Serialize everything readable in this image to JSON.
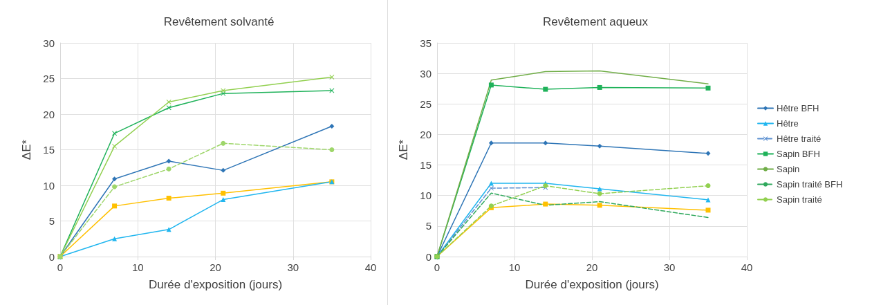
{
  "chart_data": [
    {
      "type": "line",
      "title": "Revêtement solvanté",
      "xlabel": "Durée d'exposition (jours)",
      "ylabel": "ΔE*",
      "xlim": [
        0,
        40
      ],
      "xticks": [
        0,
        10,
        20,
        30,
        40
      ],
      "ylim": [
        0,
        30
      ],
      "yticks": [
        0,
        5,
        10,
        15,
        20,
        25,
        30
      ],
      "grid": true,
      "legend": false,
      "x": [
        0,
        7,
        14,
        21,
        35
      ],
      "series": [
        {
          "color": "#ffc000",
          "marker": "square",
          "values": [
            0,
            7.1,
            8.2,
            8.9,
            10.5
          ]
        },
        {
          "color": "#2e75b6",
          "marker": "diamond",
          "values": [
            0,
            10.9,
            13.4,
            12.1,
            18.3
          ]
        },
        {
          "color": "#21b6ef",
          "marker": "triangle",
          "values": [
            0,
            2.5,
            3.8,
            8.0,
            10.5
          ]
        },
        {
          "color": "#1fb25a",
          "marker": "cross",
          "values": [
            0,
            17.3,
            20.9,
            22.9,
            23.3
          ]
        },
        {
          "color": "#92d050",
          "marker": "cross",
          "values": [
            0,
            15.5,
            21.7,
            23.3,
            25.2
          ]
        },
        {
          "color": "#9ed66a",
          "marker": "circle",
          "line_style": "dashed",
          "values": [
            0,
            9.8,
            12.3,
            15.9,
            15.0
          ]
        }
      ]
    },
    {
      "type": "line",
      "title": "Revêtement aqueux",
      "xlabel": "Durée d'exposition (jours)",
      "ylabel": "ΔE*",
      "xlim": [
        0,
        40
      ],
      "xticks": [
        0,
        10,
        20,
        30,
        40
      ],
      "ylim": [
        0,
        35
      ],
      "yticks": [
        0,
        5,
        10,
        15,
        20,
        25,
        30,
        35
      ],
      "grid": true,
      "legend": "right",
      "x": [
        0,
        7,
        14,
        21,
        35
      ],
      "series": [
        {
          "color": "#ffc000",
          "marker": "square",
          "values": [
            0,
            8.0,
            8.6,
            8.4,
            7.6
          ]
        },
        {
          "name": "Hêtre BFH",
          "color": "#2e75b6",
          "marker": "diamond",
          "values": [
            0,
            18.6,
            18.6,
            18.1,
            16.9
          ]
        },
        {
          "name": "Hêtre",
          "color": "#21b6ef",
          "marker": "triangle",
          "values": [
            0,
            12.0,
            12.0,
            11.1,
            9.3
          ]
        },
        {
          "name": "Hêtre traité",
          "color": "#5b8fd0",
          "marker": "cross",
          "line_style": "dashed",
          "values": [
            0,
            11.2,
            11.3,
            null,
            null
          ]
        },
        {
          "name": "Sapin BFH",
          "color": "#1fb25a",
          "marker": "square",
          "values": [
            0,
            28.1,
            27.4,
            27.7,
            27.6
          ]
        },
        {
          "name": "Sapin",
          "color": "#70ad47",
          "marker": "none",
          "values": [
            0,
            28.9,
            30.3,
            30.4,
            28.3
          ]
        },
        {
          "name": "Sapin traité BFH",
          "color": "#2fa85c",
          "marker": "none",
          "line_style": "dashed",
          "values": [
            0,
            10.4,
            8.4,
            9.0,
            6.4
          ]
        },
        {
          "name": "Sapin traité",
          "color": "#92d050",
          "marker": "circle",
          "line_style": "dashed",
          "values": [
            0,
            8.3,
            11.6,
            10.3,
            11.6
          ]
        }
      ]
    }
  ]
}
